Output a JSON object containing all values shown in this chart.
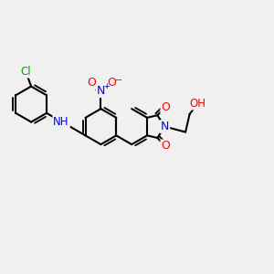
{
  "bg_color": "#f0f0f0",
  "bond_color": "#000000",
  "bond_width": 1.5,
  "atom_colors": {
    "O": "#ff0000",
    "N": "#0000ff",
    "Cl": "#00aa00",
    "H": "#000000",
    "C": "#000000",
    "plus": "#0000ff",
    "minus": "#ff0000"
  }
}
